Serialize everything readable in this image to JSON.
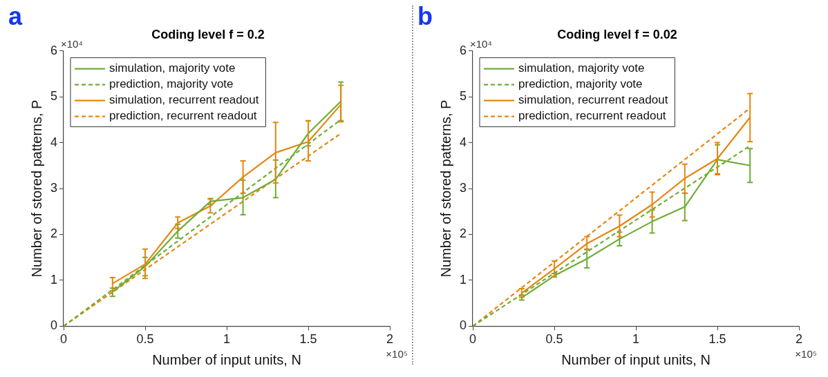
{
  "chart_data": [
    {
      "type": "line",
      "title": "Coding level f = 0.2",
      "xlabel": "Number of input units, N",
      "ylabel": "Number of stored patterns, P",
      "annotations": [
        "a",
        "×10⁴",
        "×10⁵"
      ],
      "xlim": [
        0,
        2
      ],
      "xticks": [
        0,
        0.5,
        1,
        1.5,
        2
      ],
      "ylim": [
        0,
        6
      ],
      "yticks": [
        0,
        1,
        2,
        3,
        4,
        5,
        6
      ],
      "grid": false,
      "legend": "top left",
      "marker": "none",
      "series": [
        {
          "name": "simulation, majority vote",
          "color": "#6fac35",
          "line_style": "solid",
          "x": [
            0.3,
            0.5,
            0.7,
            0.9,
            1.1,
            1.3,
            1.5,
            1.7
          ],
          "values": [
            0.75,
            1.3,
            2.07,
            2.72,
            2.8,
            3.2,
            4.2,
            4.9
          ],
          "errors": [
            [
              0.65,
              0.83
            ],
            [
              1.1,
              1.5
            ],
            [
              1.92,
              2.22
            ],
            [
              2.65,
              2.78
            ],
            [
              2.43,
              3.18
            ],
            [
              2.8,
              3.62
            ],
            [
              3.93,
              4.48
            ],
            [
              4.48,
              5.32
            ]
          ]
        },
        {
          "name": "prediction, majority vote",
          "color": "#6fac35",
          "line_style": "dashed",
          "x": [
            0,
            1.7
          ],
          "values": [
            0,
            4.5
          ]
        },
        {
          "name": "simulation, recurrent readout",
          "color": "#e5860f",
          "line_style": "solid",
          "x": [
            0.3,
            0.5,
            0.7,
            0.9,
            1.1,
            1.3,
            1.5,
            1.7
          ],
          "values": [
            0.93,
            1.35,
            2.25,
            2.62,
            3.25,
            3.78,
            4.02,
            4.83
          ],
          "errors": [
            [
              0.77,
              1.06
            ],
            [
              1.04,
              1.68
            ],
            [
              2.13,
              2.38
            ],
            [
              2.47,
              2.77
            ],
            [
              2.9,
              3.6
            ],
            [
              3.12,
              4.44
            ],
            [
              3.6,
              4.47
            ],
            [
              4.45,
              5.25
            ]
          ]
        },
        {
          "name": "prediction, recurrent readout",
          "color": "#e5860f",
          "line_style": "dashed",
          "x": [
            0,
            1.7
          ],
          "values": [
            0,
            4.2
          ]
        }
      ]
    },
    {
      "type": "line",
      "title": "Coding level f = 0.02",
      "xlabel": "Number of input units, N",
      "ylabel": "Number of stored patterns, P",
      "annotations": [
        "b",
        "×10⁴",
        "×10⁵"
      ],
      "xlim": [
        0,
        2
      ],
      "xticks": [
        0,
        0.5,
        1,
        1.5,
        2
      ],
      "ylim": [
        0,
        6
      ],
      "yticks": [
        0,
        1,
        2,
        3,
        4,
        5,
        6
      ],
      "grid": false,
      "legend": "top left",
      "marker": "none",
      "series": [
        {
          "name": "simulation, majority vote",
          "color": "#6fac35",
          "line_style": "solid",
          "x": [
            0.3,
            0.5,
            0.7,
            0.9,
            1.1,
            1.3,
            1.5,
            1.7
          ],
          "values": [
            0.62,
            1.1,
            1.47,
            1.9,
            2.28,
            2.6,
            3.63,
            3.5
          ],
          "errors": [
            [
              0.57,
              0.68
            ],
            [
              1.07,
              1.15
            ],
            [
              1.27,
              1.67
            ],
            [
              1.75,
              2.05
            ],
            [
              2.03,
              2.53
            ],
            [
              2.3,
              2.9
            ],
            [
              3.32,
              3.95
            ],
            [
              3.13,
              3.87
            ]
          ]
        },
        {
          "name": "prediction, majority vote",
          "color": "#6fac35",
          "line_style": "dashed",
          "x": [
            0,
            1.7
          ],
          "values": [
            0,
            3.93
          ]
        },
        {
          "name": "simulation, recurrent readout",
          "color": "#e5860f",
          "line_style": "solid",
          "x": [
            0.3,
            0.5,
            0.7,
            0.9,
            1.1,
            1.3,
            1.5,
            1.7
          ],
          "values": [
            0.72,
            1.25,
            1.8,
            2.18,
            2.65,
            3.22,
            3.65,
            4.55
          ],
          "errors": [
            [
              0.63,
              0.82
            ],
            [
              1.08,
              1.42
            ],
            [
              1.68,
              1.95
            ],
            [
              1.95,
              2.42
            ],
            [
              2.38,
              2.92
            ],
            [
              2.9,
              3.53
            ],
            [
              3.3,
              4.0
            ],
            [
              4.02,
              5.07
            ]
          ]
        },
        {
          "name": "prediction, recurrent readout",
          "color": "#e5860f",
          "line_style": "dashed",
          "x": [
            0,
            1.7
          ],
          "values": [
            0,
            4.75
          ]
        }
      ]
    }
  ]
}
